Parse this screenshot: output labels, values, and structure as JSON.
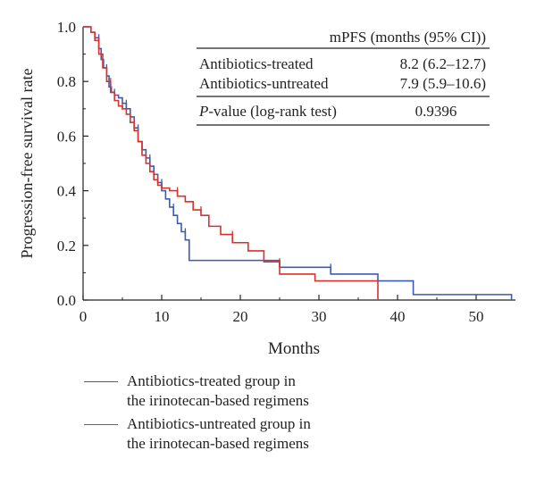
{
  "chart_data": {
    "type": "line",
    "xlabel": "Months",
    "ylabel": "Progression-free survival rate",
    "xlim": [
      0,
      55
    ],
    "ylim": [
      0,
      1.0
    ],
    "xticks": [
      "0",
      "10",
      "20",
      "30",
      "40",
      "50"
    ],
    "yticks": [
      "0.0",
      "0.2",
      "0.4",
      "0.6",
      "0.8",
      "1.0"
    ],
    "grid": false,
    "series": [
      {
        "name": "Antibiotics-treated group in the irinotecan-based regimens",
        "color": "#3b5bb5",
        "x": [
          0,
          1,
          1.5,
          2.0,
          2.3,
          2.6,
          3.0,
          3.3,
          3.6,
          4.0,
          4.5,
          5.0,
          5.5,
          6.0,
          6.5,
          7.0,
          7.5,
          8.0,
          8.5,
          9.0,
          9.5,
          10.0,
          10.5,
          11.0,
          11.5,
          12.0,
          12.5,
          13.0,
          13.5,
          25.0,
          31.5,
          37.5,
          42.0,
          54.5
        ],
        "y": [
          1.0,
          0.98,
          0.96,
          0.92,
          0.88,
          0.85,
          0.82,
          0.78,
          0.76,
          0.75,
          0.74,
          0.72,
          0.7,
          0.67,
          0.63,
          0.58,
          0.55,
          0.52,
          0.49,
          0.46,
          0.43,
          0.4,
          0.37,
          0.34,
          0.31,
          0.28,
          0.25,
          0.22,
          0.145,
          0.12,
          0.095,
          0.07,
          0.02,
          0.0
        ]
      },
      {
        "name": "Antibiotics-untreated group in the irinotecan-based regimens",
        "color": "#d9312e",
        "x": [
          0,
          1,
          1.5,
          2.0,
          2.5,
          3.0,
          3.5,
          4.0,
          4.5,
          5.0,
          5.5,
          6.0,
          6.5,
          7.0,
          7.5,
          8.0,
          8.5,
          9.0,
          9.5,
          10.0,
          11.0,
          12.0,
          13.0,
          14.0,
          15.0,
          16.0,
          17.5,
          19.0,
          21.0,
          23.0,
          25.0,
          29.5,
          37.5
        ],
        "y": [
          1.0,
          0.98,
          0.95,
          0.9,
          0.85,
          0.8,
          0.76,
          0.73,
          0.71,
          0.7,
          0.68,
          0.65,
          0.62,
          0.58,
          0.53,
          0.5,
          0.47,
          0.44,
          0.42,
          0.41,
          0.4,
          0.38,
          0.36,
          0.33,
          0.31,
          0.27,
          0.24,
          0.21,
          0.18,
          0.14,
          0.095,
          0.07,
          0.0
        ]
      }
    ],
    "table": {
      "header": "mPFS (months (95% CI))",
      "rows": [
        {
          "label": "Antibiotics-treated",
          "value": "8.2 (6.2–12.7)"
        },
        {
          "label": "Antibiotics-untreated",
          "value": "7.9 (5.9–10.6)"
        }
      ],
      "pvalue_label_italic": "P",
      "pvalue_label_rest": "-value (log-rank test)",
      "pvalue": "0.9396"
    }
  }
}
